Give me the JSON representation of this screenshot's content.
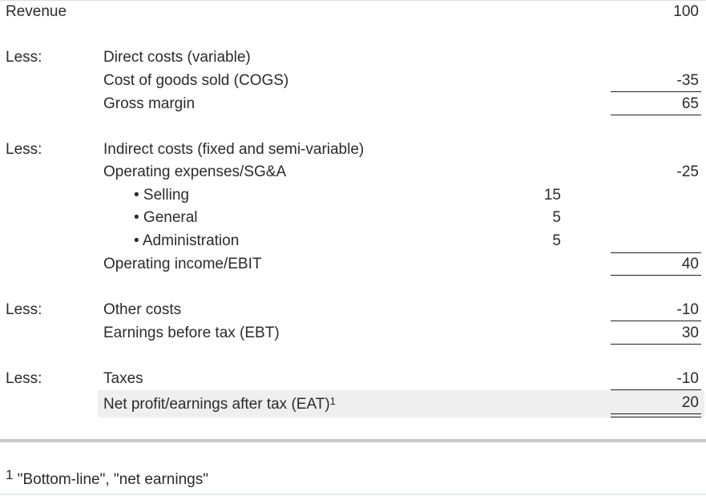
{
  "revenue": {
    "label": "Revenue",
    "value": "100"
  },
  "section1": {
    "prefix": "Less:",
    "heading": "Direct costs (variable)",
    "cogs_label": "Cost of goods sold (COGS)",
    "cogs_value": "-35",
    "gm_label": "Gross margin",
    "gm_value": "65"
  },
  "section2": {
    "prefix": "Less:",
    "heading": "Indirect costs (fixed and semi-variable)",
    "opex_label": "Operating expenses/SG&A",
    "opex_value": "-25",
    "items": [
      {
        "label": "• Selling",
        "value": "15"
      },
      {
        "label": "• General",
        "value": "5"
      },
      {
        "label": "• Administration",
        "value": "5"
      }
    ],
    "ebit_label": "Operating income/EBIT",
    "ebit_value": "40"
  },
  "section3": {
    "prefix": "Less:",
    "other_label": "Other costs",
    "other_value": "-10",
    "ebt_label": "Earnings before tax (EBT)",
    "ebt_value": "30"
  },
  "section4": {
    "prefix": "Less:",
    "tax_label": "Taxes",
    "tax_value": "-10",
    "net_label": "Net profit/earnings after tax (EAT)",
    "net_sup": "1",
    "net_value": "20"
  },
  "footnote": {
    "marker": "1",
    "text": "\"Bottom-line\", \"net earnings\""
  }
}
